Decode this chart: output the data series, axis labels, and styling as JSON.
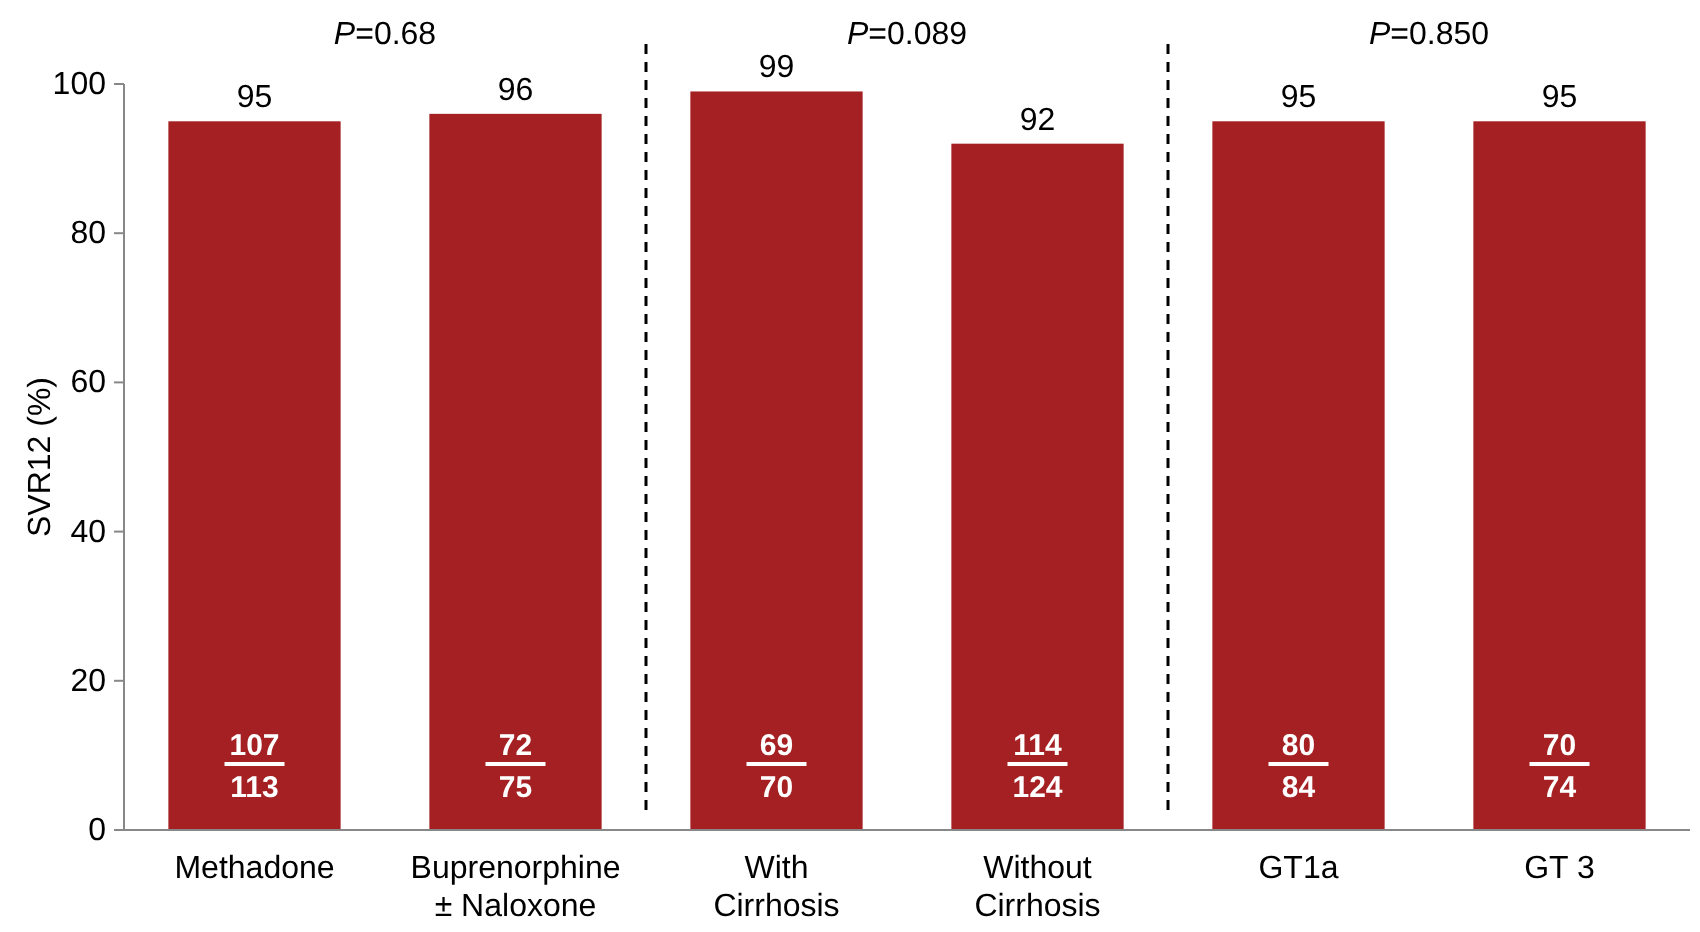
{
  "chart_data": {
    "type": "bar",
    "ylabel": "SVR12 (%)",
    "categories": [
      "Methadone",
      "Buprenorphine ± Naloxone",
      "With Cirrhosis",
      "Without Cirrhosis",
      "GT1a",
      "GT 3"
    ],
    "values": [
      95,
      96,
      99,
      92,
      95,
      95
    ],
    "color": "#a52022",
    "data_labels": true,
    "ylim": [
      0,
      100
    ],
    "yticks": [
      0,
      20,
      40,
      60,
      80,
      100
    ],
    "grid": false,
    "annotations": [
      "P=0.68",
      "P=0.089",
      "P=0.850",
      "107",
      "113",
      "72",
      "75",
      "69",
      "70",
      "114",
      "124",
      "80",
      "84",
      "70",
      "74"
    ]
  }
}
